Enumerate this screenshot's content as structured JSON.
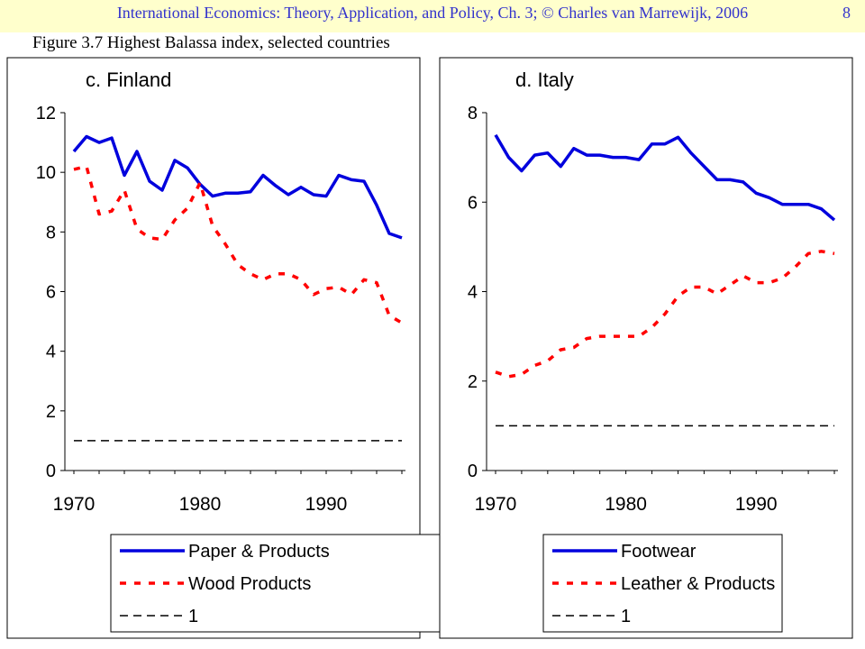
{
  "header": {
    "text": "International Economics: Theory, Application, and Policy, Ch. 3; © Charles van Marrewijk, 2006",
    "page": "8"
  },
  "figure_title": "Figure 3.7 Highest Balassa index, selected countries",
  "colors": {
    "blue": "#0000dd",
    "red": "#ff0000",
    "black": "#000000",
    "header_bg": "#ffffcc",
    "header_text": "#3333cc"
  },
  "chart_data": [
    {
      "type": "line",
      "title": "c. Finland",
      "xlabel": "",
      "ylabel": "",
      "xlim": [
        1970,
        1996
      ],
      "ylim": [
        0,
        12
      ],
      "x_ticks": [
        "1970",
        "1980",
        "1990"
      ],
      "y_ticks": [
        "0",
        "2",
        "4",
        "6",
        "8",
        "10",
        "12"
      ],
      "grid": false,
      "legend_position": "below",
      "x": [
        1970,
        1971,
        1972,
        1973,
        1974,
        1975,
        1976,
        1977,
        1978,
        1979,
        1980,
        1981,
        1982,
        1983,
        1984,
        1985,
        1986,
        1987,
        1988,
        1989,
        1990,
        1991,
        1992,
        1993,
        1994,
        1995,
        1996
      ],
      "series": [
        {
          "name": "Paper & Products",
          "style": "solid",
          "color": "#0000dd",
          "values": [
            10.7,
            11.2,
            11.0,
            11.15,
            9.9,
            10.7,
            9.7,
            9.4,
            10.4,
            10.15,
            9.6,
            9.2,
            9.3,
            9.3,
            9.35,
            9.9,
            9.55,
            9.25,
            9.5,
            9.25,
            9.2,
            9.9,
            9.75,
            9.7,
            8.9,
            7.95,
            7.8
          ]
        },
        {
          "name": "Wood Products",
          "style": "dotted",
          "color": "#ff0000",
          "values": [
            10.1,
            10.2,
            8.6,
            8.7,
            9.4,
            8.1,
            7.8,
            7.75,
            8.4,
            8.8,
            9.65,
            8.2,
            7.6,
            6.9,
            6.6,
            6.4,
            6.6,
            6.6,
            6.4,
            5.9,
            6.1,
            6.15,
            5.9,
            6.4,
            6.3,
            5.2,
            4.95
          ]
        },
        {
          "name": "1",
          "style": "dashed",
          "color": "#000000",
          "values": [
            1,
            1,
            1,
            1,
            1,
            1,
            1,
            1,
            1,
            1,
            1,
            1,
            1,
            1,
            1,
            1,
            1,
            1,
            1,
            1,
            1,
            1,
            1,
            1,
            1,
            1,
            1
          ]
        }
      ]
    },
    {
      "type": "line",
      "title": "d. Italy",
      "xlabel": "",
      "ylabel": "",
      "xlim": [
        1970,
        1996
      ],
      "ylim": [
        0,
        8
      ],
      "x_ticks": [
        "1970",
        "1980",
        "1990"
      ],
      "y_ticks": [
        "0",
        "2",
        "4",
        "6",
        "8"
      ],
      "grid": false,
      "legend_position": "below",
      "x": [
        1970,
        1971,
        1972,
        1973,
        1974,
        1975,
        1976,
        1977,
        1978,
        1979,
        1980,
        1981,
        1982,
        1983,
        1984,
        1985,
        1986,
        1987,
        1988,
        1989,
        1990,
        1991,
        1992,
        1993,
        1994,
        1995,
        1996
      ],
      "series": [
        {
          "name": "Footwear",
          "style": "solid",
          "color": "#0000dd",
          "values": [
            7.5,
            7.0,
            6.7,
            7.05,
            7.1,
            6.8,
            7.2,
            7.05,
            7.05,
            7.0,
            7.0,
            6.95,
            7.3,
            7.3,
            7.45,
            7.1,
            6.8,
            6.5,
            6.5,
            6.45,
            6.2,
            6.1,
            5.95,
            5.95,
            5.95,
            5.85,
            5.6
          ]
        },
        {
          "name": "Leather & Products",
          "style": "dotted",
          "color": "#ff0000",
          "values": [
            2.2,
            2.1,
            2.15,
            2.35,
            2.45,
            2.7,
            2.75,
            2.95,
            3.0,
            3.0,
            3.0,
            3.0,
            3.2,
            3.5,
            3.9,
            4.1,
            4.1,
            3.95,
            4.15,
            4.35,
            4.2,
            4.2,
            4.3,
            4.55,
            4.85,
            4.9,
            4.85
          ]
        },
        {
          "name": "1",
          "style": "dashed",
          "color": "#000000",
          "values": [
            1,
            1,
            1,
            1,
            1,
            1,
            1,
            1,
            1,
            1,
            1,
            1,
            1,
            1,
            1,
            1,
            1,
            1,
            1,
            1,
            1,
            1,
            1,
            1,
            1,
            1,
            1
          ]
        }
      ]
    }
  ]
}
